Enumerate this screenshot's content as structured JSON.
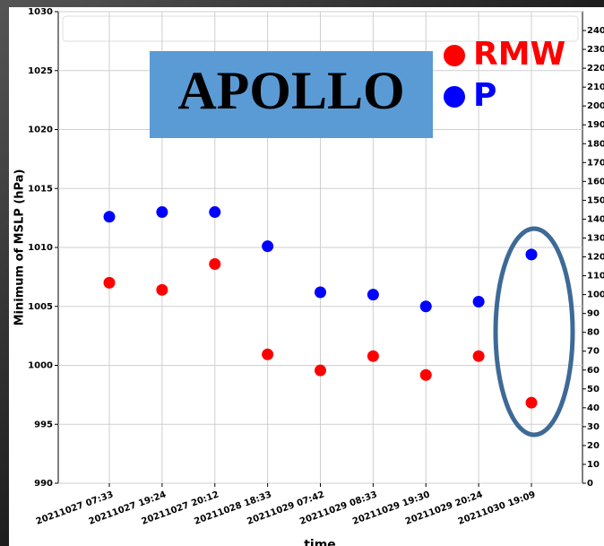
{
  "chart_data": {
    "type": "scatter",
    "annotation": "APOLLO",
    "x_label": "time",
    "y_label": "Minimum of MSLP (hPa)",
    "categories": [
      "20211027 07:33",
      "20211027 19:24",
      "20211027 20:12",
      "20211028 18:33",
      "20211029 07:42",
      "20211029 08:33",
      "20211029 19:30",
      "20211029 20:24",
      "20211030 19:09"
    ],
    "series": [
      {
        "name": "RMW",
        "color": "#ff0000",
        "axis": "y2",
        "values": [
          106.3,
          102.5,
          116.2,
          68.3,
          59.8,
          67.4,
          57.4,
          67.4,
          42.7
        ]
      },
      {
        "name": "P",
        "color": "#0000ff",
        "values": [
          1012.6,
          1013.0,
          1013.0,
          1010.1,
          1006.2,
          1006.0,
          1005.0,
          1005.4,
          1009.4
        ]
      }
    ],
    "ylim": [
      990,
      1030
    ],
    "yticks": [
      990,
      995,
      1000,
      1005,
      1010,
      1015,
      1020,
      1025,
      1030
    ],
    "y2lim": [
      0,
      250
    ],
    "y2ticks": [
      0,
      10,
      20,
      30,
      40,
      50,
      60,
      70,
      80,
      90,
      100,
      110,
      120,
      130,
      140,
      150,
      160,
      170,
      180,
      190,
      200,
      210,
      220,
      230,
      240
    ],
    "grid": true
  }
}
